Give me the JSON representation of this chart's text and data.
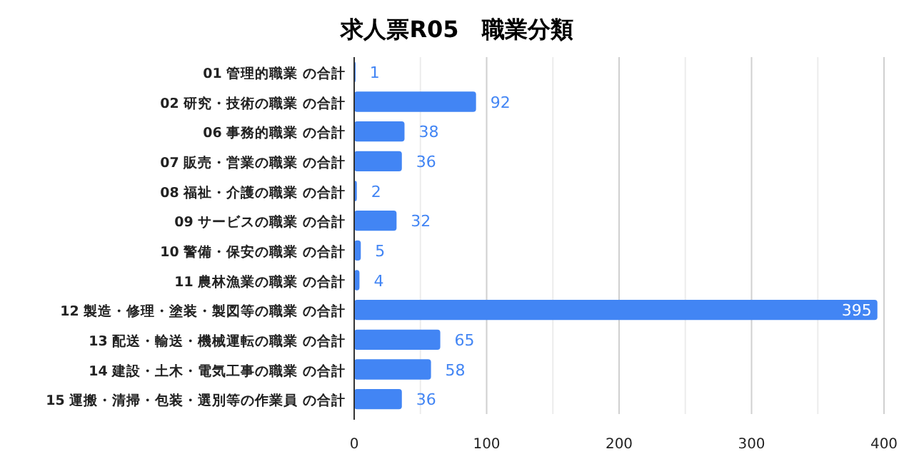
{
  "chart_data": {
    "type": "bar",
    "orientation": "horizontal",
    "title": "求人票R05　職業分類",
    "categories": [
      "01 管理的職業 の合計",
      "02 研究・技術の職業 の合計",
      "06 事務的職業 の合計",
      "07 販売・営業の職業 の合計",
      "08 福祉・介護の職業 の合計",
      "09 サービスの職業 の合計",
      "10 警備・保安の職業 の合計",
      "11 農林漁業の職業 の合計",
      "12 製造・修理・塗装・製図等の職業 の合計",
      "13 配送・輸送・機械運転の職業 の合計",
      "14 建設・土木・電気工事の職業 の合計",
      "15 運搬・清掃・包装・選別等の作業員 の合計"
    ],
    "values": [
      1,
      92,
      38,
      36,
      2,
      32,
      5,
      4,
      395,
      65,
      58,
      36
    ],
    "color": "#4285f4",
    "xlim": [
      0,
      400
    ],
    "xticks": [
      0,
      {
        "value": 50,
        "label": null
      },
      100,
      {
        "value": 150,
        "label": null
      },
      200,
      {
        "value": 250,
        "label": null
      },
      300,
      {
        "value": 350,
        "label": null
      },
      400
    ],
    "grid": "x",
    "data_labels": true
  }
}
